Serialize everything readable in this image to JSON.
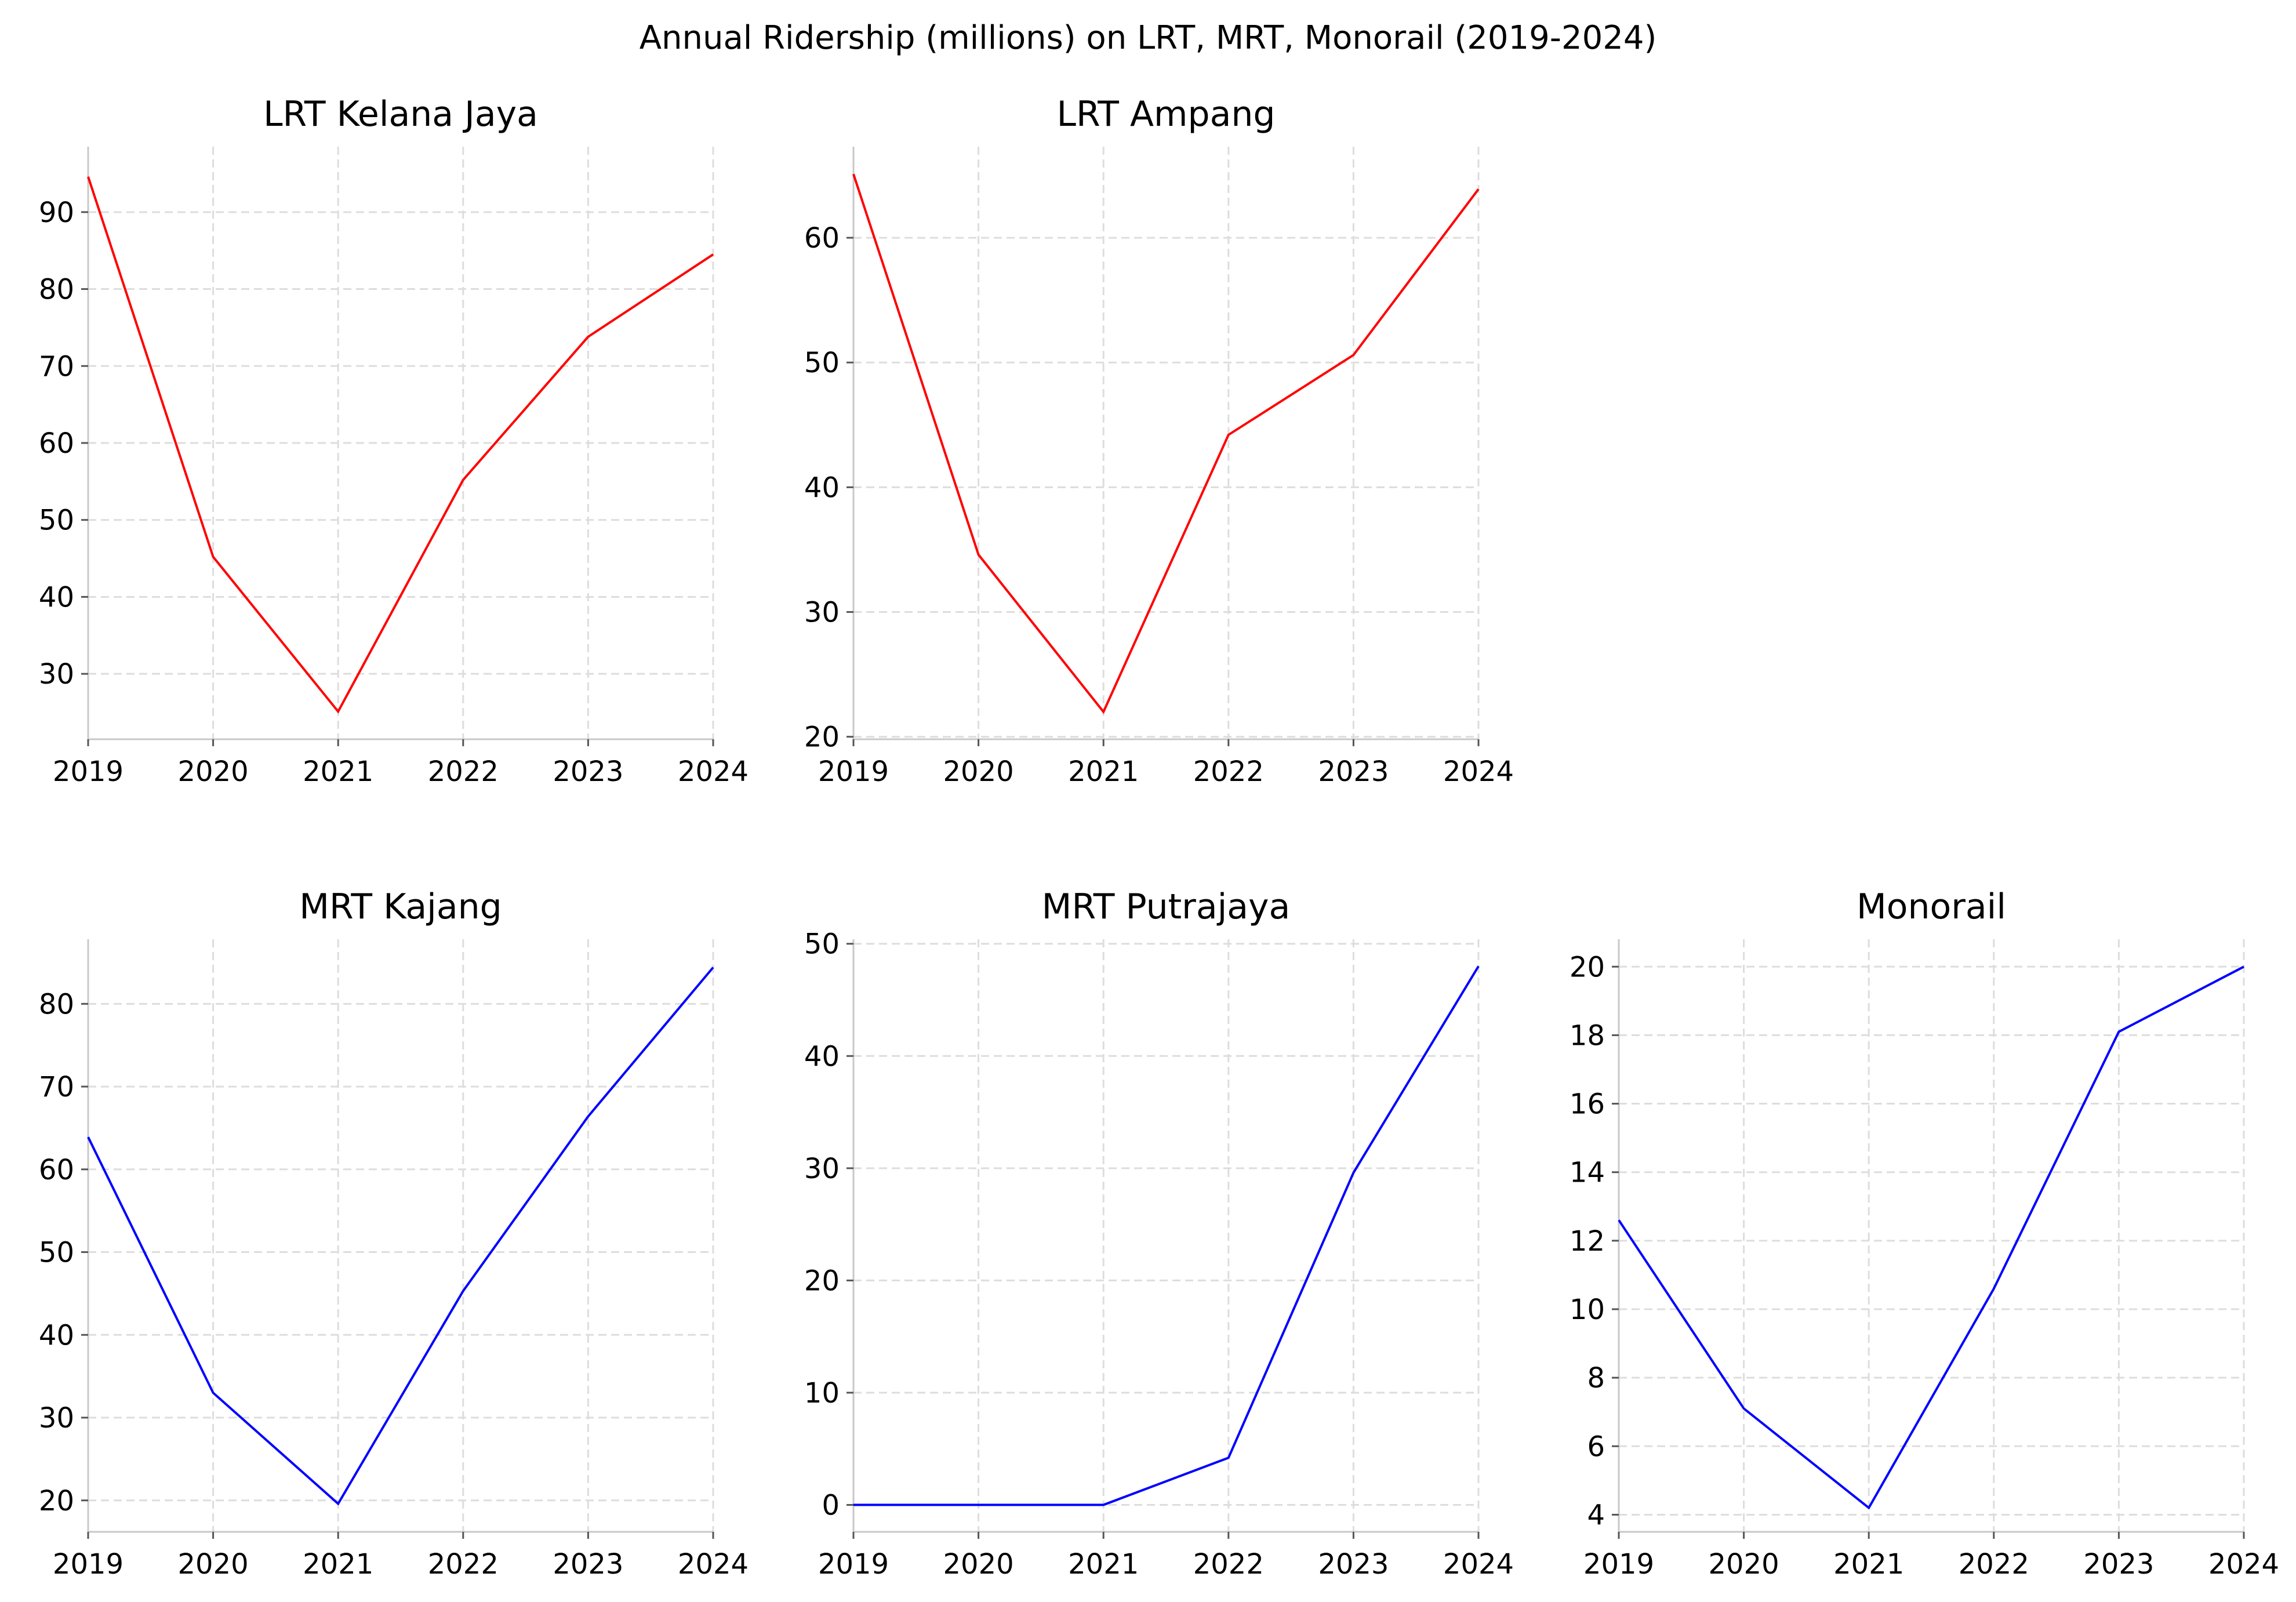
{
  "figure": {
    "title": "Annual Ridership (millions) on LRT, MRT, Monorail (2019-2024)"
  },
  "colors": {
    "lrt": "#ff0000",
    "mrt": "#0000ff",
    "grid": "#dddddd",
    "spine": "#c8c8c8",
    "text": "#000000"
  },
  "chart_data": [
    {
      "type": "line",
      "title": "LRT Kelana Jaya",
      "x": [
        2019,
        2020,
        2021,
        2022,
        2023,
        2024
      ],
      "y": [
        94.6,
        45.2,
        25.1,
        55.2,
        73.8,
        84.5
      ],
      "xlim": [
        2019,
        2024
      ],
      "ylim": [
        21.5,
        98.5
      ],
      "yticks": [
        30,
        40,
        50,
        60,
        70,
        80,
        90
      ],
      "xticks": [
        2019,
        2020,
        2021,
        2022,
        2023,
        2024
      ],
      "color": "lrt",
      "grid": true,
      "xlabel": "",
      "ylabel": ""
    },
    {
      "type": "line",
      "title": "LRT Ampang",
      "x": [
        2019,
        2020,
        2021,
        2022,
        2023,
        2024
      ],
      "y": [
        65.1,
        34.6,
        22.0,
        44.2,
        50.6,
        63.9
      ],
      "xlim": [
        2019,
        2024
      ],
      "ylim": [
        19.8,
        67.3
      ],
      "yticks": [
        20,
        30,
        40,
        50,
        60
      ],
      "xticks": [
        2019,
        2020,
        2021,
        2022,
        2023,
        2024
      ],
      "color": "lrt",
      "grid": true,
      "xlabel": "",
      "ylabel": ""
    },
    {
      "type": "line",
      "title": "MRT Kajang",
      "x": [
        2019,
        2020,
        2021,
        2022,
        2023,
        2024
      ],
      "y": [
        63.9,
        33.0,
        19.6,
        45.3,
        66.4,
        84.4
      ],
      "xlim": [
        2019,
        2024
      ],
      "ylim": [
        16.2,
        87.8
      ],
      "yticks": [
        20,
        30,
        40,
        50,
        60,
        70,
        80
      ],
      "xticks": [
        2019,
        2020,
        2021,
        2022,
        2023,
        2024
      ],
      "color": "mrt",
      "grid": true,
      "xlabel": "",
      "ylabel": ""
    },
    {
      "type": "line",
      "title": "MRT Putrajaya",
      "x": [
        2019,
        2020,
        2021,
        2022,
        2023,
        2024
      ],
      "y": [
        0.0,
        0.0,
        0.0,
        4.2,
        29.6,
        48.0
      ],
      "xlim": [
        2019,
        2024
      ],
      "ylim": [
        -2.4,
        50.4
      ],
      "yticks": [
        0,
        10,
        20,
        30,
        40,
        50
      ],
      "xticks": [
        2019,
        2020,
        2021,
        2022,
        2023,
        2024
      ],
      "color": "mrt",
      "grid": true,
      "xlabel": "",
      "ylabel": ""
    },
    {
      "type": "line",
      "title": "Monorail",
      "x": [
        2019,
        2020,
        2021,
        2022,
        2023,
        2024
      ],
      "y": [
        12.6,
        7.1,
        4.2,
        10.6,
        18.1,
        20.0
      ],
      "xlim": [
        2019,
        2024
      ],
      "ylim": [
        3.5,
        20.8
      ],
      "yticks": [
        4,
        6,
        8,
        10,
        12,
        14,
        16,
        18,
        20
      ],
      "xticks": [
        2019,
        2020,
        2021,
        2022,
        2023,
        2024
      ],
      "color": "mrt",
      "grid": true,
      "xlabel": "",
      "ylabel": ""
    }
  ]
}
